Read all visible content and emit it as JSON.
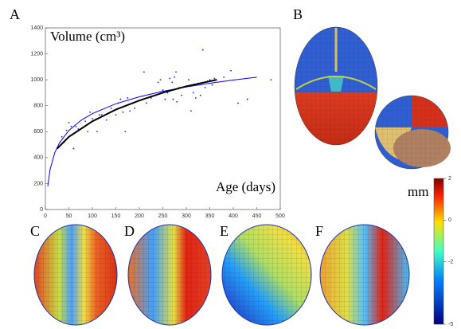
{
  "panel_labels": [
    "A",
    "B",
    "C",
    "D",
    "E",
    "F"
  ],
  "colorbar": {
    "label": "mm",
    "lim": [
      -5,
      2
    ],
    "ticks": [
      2,
      0,
      -2,
      -5
    ]
  },
  "chart_data": {
    "type": "scatter",
    "y_label": "Volume (cm³)",
    "x_label": "Age (days)",
    "xlim": [
      0,
      500
    ],
    "xticks": [
      0,
      50,
      100,
      150,
      200,
      250,
      300,
      350,
      400,
      450,
      500
    ],
    "ylim": [
      0,
      1400
    ],
    "yticks": [
      0,
      200,
      400,
      600,
      800,
      1000,
      1200,
      1400
    ],
    "series": [
      {
        "type": "scatter",
        "color": "#1a1aff",
        "x": [
          25,
          35,
          40,
          45,
          50,
          55,
          60,
          65,
          70,
          85,
          90,
          95,
          100,
          110,
          115,
          120,
          130,
          140,
          150,
          155,
          160,
          165,
          170,
          175,
          180,
          190,
          200,
          210,
          215,
          225,
          235,
          240,
          245,
          250,
          255,
          260,
          265,
          270,
          272,
          275,
          278,
          280,
          285,
          290,
          300,
          305,
          310,
          315,
          320,
          330,
          335,
          340,
          345,
          350,
          355,
          360,
          380,
          395,
          410,
          430,
          480
        ],
        "values": [
          470,
          560,
          520,
          610,
          670,
          640,
          470,
          640,
          620,
          680,
          600,
          750,
          700,
          600,
          730,
          730,
          690,
          780,
          730,
          820,
          850,
          750,
          600,
          860,
          760,
          780,
          840,
          1060,
          820,
          860,
          880,
          980,
          1000,
          920,
          850,
          900,
          1010,
          980,
          850,
          1020,
          1060,
          830,
          940,
          880,
          950,
          1000,
          760,
          900,
          860,
          880,
          1230,
          940,
          990,
          1000,
          960,
          1010,
          1020,
          1070,
          820,
          850,
          1000
        ]
      },
      {
        "type": "line",
        "color": "#0000ff",
        "x": [
          5,
          10,
          20,
          30,
          50,
          75,
          100,
          150,
          200,
          250,
          300,
          350,
          400,
          450
        ],
        "values": [
          179,
          309,
          438,
          514,
          610,
          685,
          739,
          815,
          869,
          911,
          945,
          973,
          998,
          1020
        ]
      },
      {
        "type": "line",
        "color": "#000000",
        "x": [
          25,
          50,
          100,
          150,
          200,
          250,
          300,
          365
        ],
        "values": [
          470,
          560,
          680,
          770,
          840,
          900,
          950,
          1000
        ]
      }
    ]
  }
}
